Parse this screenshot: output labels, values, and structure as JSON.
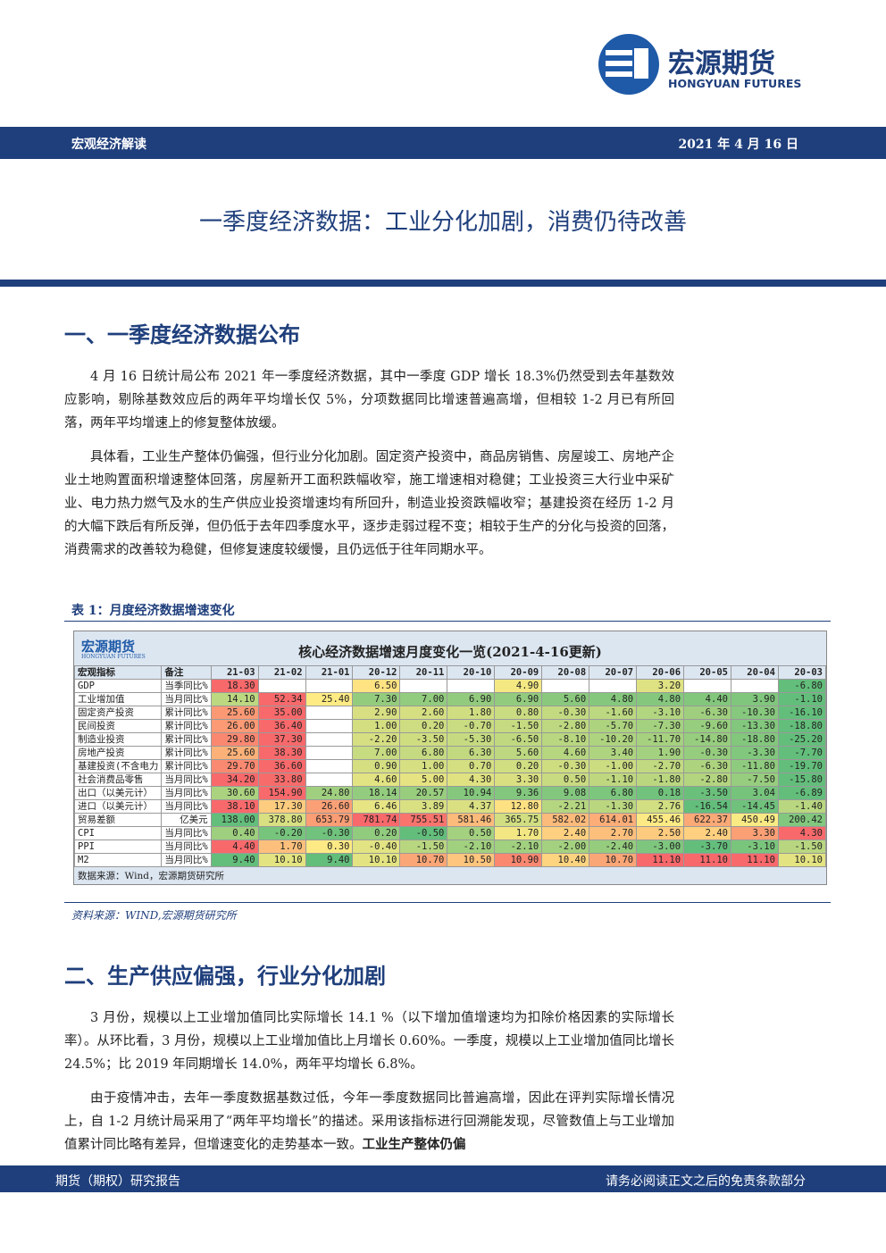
{
  "header": {
    "logo_name": "宏源期货",
    "logo_en": "HONGYUAN FUTURES",
    "band_left": "宏观经济解读",
    "band_right": "2021 年 4 月 16 日"
  },
  "title": "一季度经济数据：工业分化加剧，消费仍待改善",
  "section1": {
    "heading": "一、一季度经济数据公布",
    "paragraphs": [
      "4 月 16 日统计局公布 2021 年一季度经济数据，其中一季度 GDP 增长 18.3%仍然受到去年基数效应影响，剔除基数效应后的两年平均增长仅 5%，分项数据同比增速普遍高增，但相较 1-2 月已有所回落，两年平均增速上的修复整体放缓。",
      "具体看，工业生产整体仍偏强，但行业分化加剧。固定资产投资中，商品房销售、房屋竣工、房地产企业土地购置面积增速整体回落，房屋新开工面积跌幅收窄，施工增速相对稳健；工业投资三大行业中采矿业、电力热力燃气及水的生产供应业投资增速均有所回升，制造业投资跌幅收窄；基建投资在经历 1-2 月的大幅下跌后有所反弹，但仍低于去年四季度水平，逐步走弱过程不变；相较于生产的分化与投资的回落，消费需求的改善较为稳健，但修复速度较缓慢，且仍远低于往年同期水平。"
    ]
  },
  "table": {
    "caption": "表 1：月度经济数据增速变化",
    "logo_name": "宏源期货",
    "logo_en": "HONGYUAN FUTURES",
    "title": "核心经济数据增速月度变化一览(2021-4-16更新)",
    "header": [
      "宏观指标",
      "备注",
      "21-03",
      "21-02",
      "21-01",
      "20-12",
      "20-11",
      "20-10",
      "20-09",
      "20-08",
      "20-07",
      "20-06",
      "20-05",
      "20-04",
      "20-03"
    ],
    "rows": [
      [
        "GDP",
        "当季同比%",
        "18.30",
        null,
        null,
        "6.50",
        null,
        null,
        "4.90",
        null,
        null,
        "3.20",
        null,
        null,
        "-6.80"
      ],
      [
        "工业增加值",
        "当月同比%",
        "14.10",
        "52.34",
        "25.40",
        "7.30",
        "7.00",
        "6.90",
        "6.90",
        "5.60",
        "4.80",
        "4.80",
        "4.40",
        "3.90",
        "-1.10"
      ],
      [
        "固定资产投资",
        "累计同比%",
        "25.60",
        "35.00",
        null,
        "2.90",
        "2.60",
        "1.80",
        "0.80",
        "-0.30",
        "-1.60",
        "-3.10",
        "-6.30",
        "-10.30",
        "-16.10"
      ],
      [
        "民间投资",
        "累计同比%",
        "26.00",
        "36.40",
        null,
        "1.00",
        "0.20",
        "-0.70",
        "-1.50",
        "-2.80",
        "-5.70",
        "-7.30",
        "-9.60",
        "-13.30",
        "-18.80"
      ],
      [
        "制造业投资",
        "累计同比%",
        "29.80",
        "37.30",
        null,
        "-2.20",
        "-3.50",
        "-5.30",
        "-6.50",
        "-8.10",
        "-10.20",
        "-11.70",
        "-14.80",
        "-18.80",
        "-25.20"
      ],
      [
        "房地产投资",
        "累计同比%",
        "25.60",
        "38.30",
        null,
        "7.00",
        "6.80",
        "6.30",
        "5.60",
        "4.60",
        "3.40",
        "1.90",
        "-0.30",
        "-3.30",
        "-7.70"
      ],
      [
        "基建投资(不含电力",
        "累计同比%",
        "29.70",
        "36.60",
        null,
        "0.90",
        "1.00",
        "0.70",
        "0.20",
        "-0.30",
        "-1.00",
        "-2.70",
        "-6.30",
        "-11.80",
        "-19.70"
      ],
      [
        "社会消费品零售",
        "当月同比%",
        "34.20",
        "33.80",
        null,
        "4.60",
        "5.00",
        "4.30",
        "3.30",
        "0.50",
        "-1.10",
        "-1.80",
        "-2.80",
        "-7.50",
        "-15.80"
      ],
      [
        "出口（以美元计）",
        "当月同比%",
        "30.60",
        "154.90",
        "24.80",
        "18.14",
        "20.57",
        "10.94",
        "9.36",
        "9.08",
        "6.80",
        "0.18",
        "-3.50",
        "3.04",
        "-6.89"
      ],
      [
        "进口（以美元计）",
        "当月同比%",
        "38.10",
        "17.30",
        "26.60",
        "6.46",
        "3.89",
        "4.37",
        "12.80",
        "-2.21",
        "-1.30",
        "2.76",
        "-16.54",
        "-14.45",
        "-1.40"
      ],
      [
        "贸易差额",
        "亿美元",
        "138.00",
        "378.80",
        "653.79",
        "781.74",
        "755.51",
        "581.46",
        "365.75",
        "582.02",
        "614.01",
        "455.46",
        "622.37",
        "450.49",
        "200.42"
      ],
      [
        "CPI",
        "当月同比%",
        "0.40",
        "-0.20",
        "-0.30",
        "0.20",
        "-0.50",
        "0.50",
        "1.70",
        "2.40",
        "2.70",
        "2.50",
        "2.40",
        "3.30",
        "4.30"
      ],
      [
        "PPI",
        "当月同比%",
        "4.40",
        "1.70",
        "0.30",
        "-0.40",
        "-1.50",
        "-2.10",
        "-2.10",
        "-2.00",
        "-2.40",
        "-3.00",
        "-3.70",
        "-3.10",
        "-1.50"
      ],
      [
        "M2",
        "当月同比%",
        "9.40",
        "10.10",
        "9.40",
        "10.10",
        "10.70",
        "10.50",
        "10.90",
        "10.40",
        "10.70",
        "11.10",
        "11.10",
        "11.10",
        "10.10"
      ]
    ],
    "inner_source": "数据来源：Wind，宏源期货研究所",
    "source": "资料来源：WIND,宏源期货研究所"
  },
  "section2": {
    "heading": "二、生产供应偏强，行业分化加剧",
    "paragraphs": [
      "3 月份，规模以上工业增加值同比实际增长 14.1 %（以下增加值增速均为扣除价格因素的实际增长率）。从环比看，3 月份，规模以上工业增加值比上月增长 0.60%。一季度，规模以上工业增加值同比增长 24.5%；比 2019 年同期增长 14.0%，两年平均增长 6.8%。"
    ],
    "last_paragraph": {
      "text": "由于疫情冲击，去年一季度数据基数过低，今年一季度数据同比普遍高增，因此在评判实际增长情况上，自 1-2 月统计局采用了“两年平均增长”的描述。采用该指标进行回溯能发现，尽管数值上与工业增加值累计同比略有差异，但增速变化的走势基本一致。",
      "bold": "工业生产整体仍偏"
    }
  },
  "footer": {
    "left": "期货（期权）研究报告",
    "right": "请务必阅读正文之后的免责条款部分"
  }
}
